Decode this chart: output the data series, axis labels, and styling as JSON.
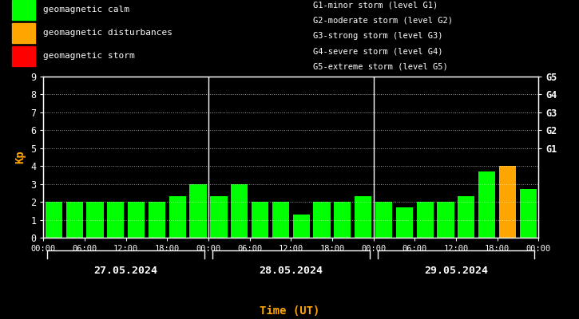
{
  "background_color": "#000000",
  "plot_bg_color": "#000000",
  "bar_data": [
    {
      "day": "27.05.2024",
      "values": [
        2.0,
        2.0,
        2.0,
        2.0,
        2.0,
        2.0,
        2.3,
        3.0
      ],
      "colors": [
        "#00ff00",
        "#00ff00",
        "#00ff00",
        "#00ff00",
        "#00ff00",
        "#00ff00",
        "#00ff00",
        "#00ff00"
      ]
    },
    {
      "day": "28.05.2024",
      "values": [
        2.3,
        3.0,
        2.0,
        2.0,
        1.3,
        2.0,
        2.0,
        2.3
      ],
      "colors": [
        "#00ff00",
        "#00ff00",
        "#00ff00",
        "#00ff00",
        "#00ff00",
        "#00ff00",
        "#00ff00",
        "#00ff00"
      ]
    },
    {
      "day": "29.05.2024",
      "values": [
        2.0,
        1.7,
        2.0,
        2.0,
        2.3,
        3.7,
        4.0,
        2.7
      ],
      "colors": [
        "#00ff00",
        "#00ff00",
        "#00ff00",
        "#00ff00",
        "#00ff00",
        "#00ff00",
        "#ffa500",
        "#00ff00"
      ]
    }
  ],
  "ylim": [
    0,
    9
  ],
  "yticks": [
    0,
    1,
    2,
    3,
    4,
    5,
    6,
    7,
    8,
    9
  ],
  "day_labels": [
    "27.05.2024",
    "28.05.2024",
    "29.05.2024"
  ],
  "ylabel": "Kp",
  "ylabel_color": "#ffa500",
  "xlabel": "Time (UT)",
  "xlabel_color": "#ffa500",
  "right_ytick_labels": [
    "G1",
    "G2",
    "G3",
    "G4",
    "G5"
  ],
  "right_ytick_positions": [
    5,
    6,
    7,
    8,
    9
  ],
  "grid_color": "#ffffff",
  "tick_color": "#ffffff",
  "border_color": "#ffffff",
  "legend_items": [
    {
      "label": "geomagnetic calm",
      "color": "#00ff00"
    },
    {
      "label": "geomagnetic disturbances",
      "color": "#ffa500"
    },
    {
      "label": "geomagnetic storm",
      "color": "#ff0000"
    }
  ],
  "storm_legend": [
    "G1-minor storm (level G1)",
    "G2-moderate storm (level G2)",
    "G3-strong storm (level G3)",
    "G4-severe storm (level G4)",
    "G5-extreme storm (level G5)"
  ],
  "text_color": "#ffffff",
  "font_size": 9
}
